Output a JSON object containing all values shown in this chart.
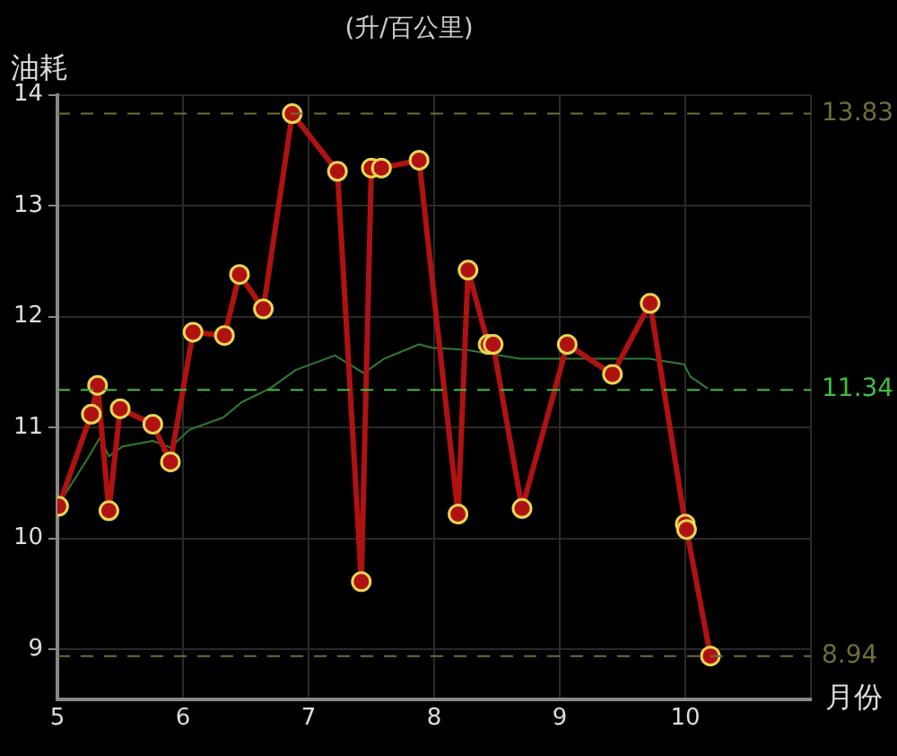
{
  "chart_data": {
    "type": "line",
    "title": "(升/百公里)",
    "ylabel": "油耗",
    "xlabel": "月份",
    "xlim": [
      5,
      11
    ],
    "xticks": [
      5,
      6,
      7,
      8,
      9,
      10,
      {
        "value": 11,
        "label": null
      }
    ],
    "ylim": [
      8.55,
      14
    ],
    "yticks": [
      9,
      10,
      11,
      12,
      13,
      14
    ],
    "grid": true,
    "legend": false,
    "line_style": "solid",
    "series": [
      {
        "color": "#b01212",
        "marker": "circle",
        "x": [
          5.01,
          5.27,
          5.32,
          5.41,
          5.5,
          5.76,
          5.9,
          6.08,
          6.33,
          6.45,
          6.64,
          6.87,
          7.23,
          7.42,
          7.5,
          7.58,
          7.88,
          8.19,
          8.27,
          8.43,
          8.47,
          8.7,
          9.06,
          9.42,
          9.72,
          10.0,
          10.01,
          10.2
        ],
        "values": [
          10.29,
          11.12,
          11.38,
          10.25,
          11.17,
          11.03,
          10.69,
          11.86,
          11.83,
          12.38,
          12.07,
          13.83,
          13.31,
          9.61,
          13.34,
          13.34,
          13.41,
          10.22,
          12.42,
          11.75,
          11.75,
          10.27,
          11.75,
          11.48,
          12.12,
          10.13,
          10.08,
          8.94
        ]
      },
      {
        "color": "#2e7d32",
        "marker": "none",
        "x": [
          5.0,
          5.24,
          5.34,
          5.41,
          5.52,
          5.76,
          5.9,
          6.05,
          6.32,
          6.47,
          6.69,
          6.9,
          7.21,
          7.44,
          7.6,
          7.88,
          7.98,
          8.26,
          8.68,
          9.71,
          9.99,
          10.04,
          10.18
        ],
        "values": [
          10.29,
          10.72,
          10.91,
          10.74,
          10.83,
          10.88,
          10.82,
          10.98,
          11.09,
          11.23,
          11.35,
          11.52,
          11.65,
          11.49,
          11.62,
          11.75,
          11.72,
          11.7,
          11.62,
          11.62,
          11.57,
          11.46,
          11.35
        ]
      }
    ],
    "ref_lines": [
      {
        "axis": "y",
        "value": 13.83,
        "label": "13.83",
        "color": "#6e6e3c"
      },
      {
        "axis": "y",
        "value": 11.34,
        "label": "11.34",
        "color": "#3fbf3f"
      },
      {
        "axis": "y",
        "value": 8.94,
        "label": "8.94",
        "color": "#6e6e3c"
      }
    ]
  }
}
